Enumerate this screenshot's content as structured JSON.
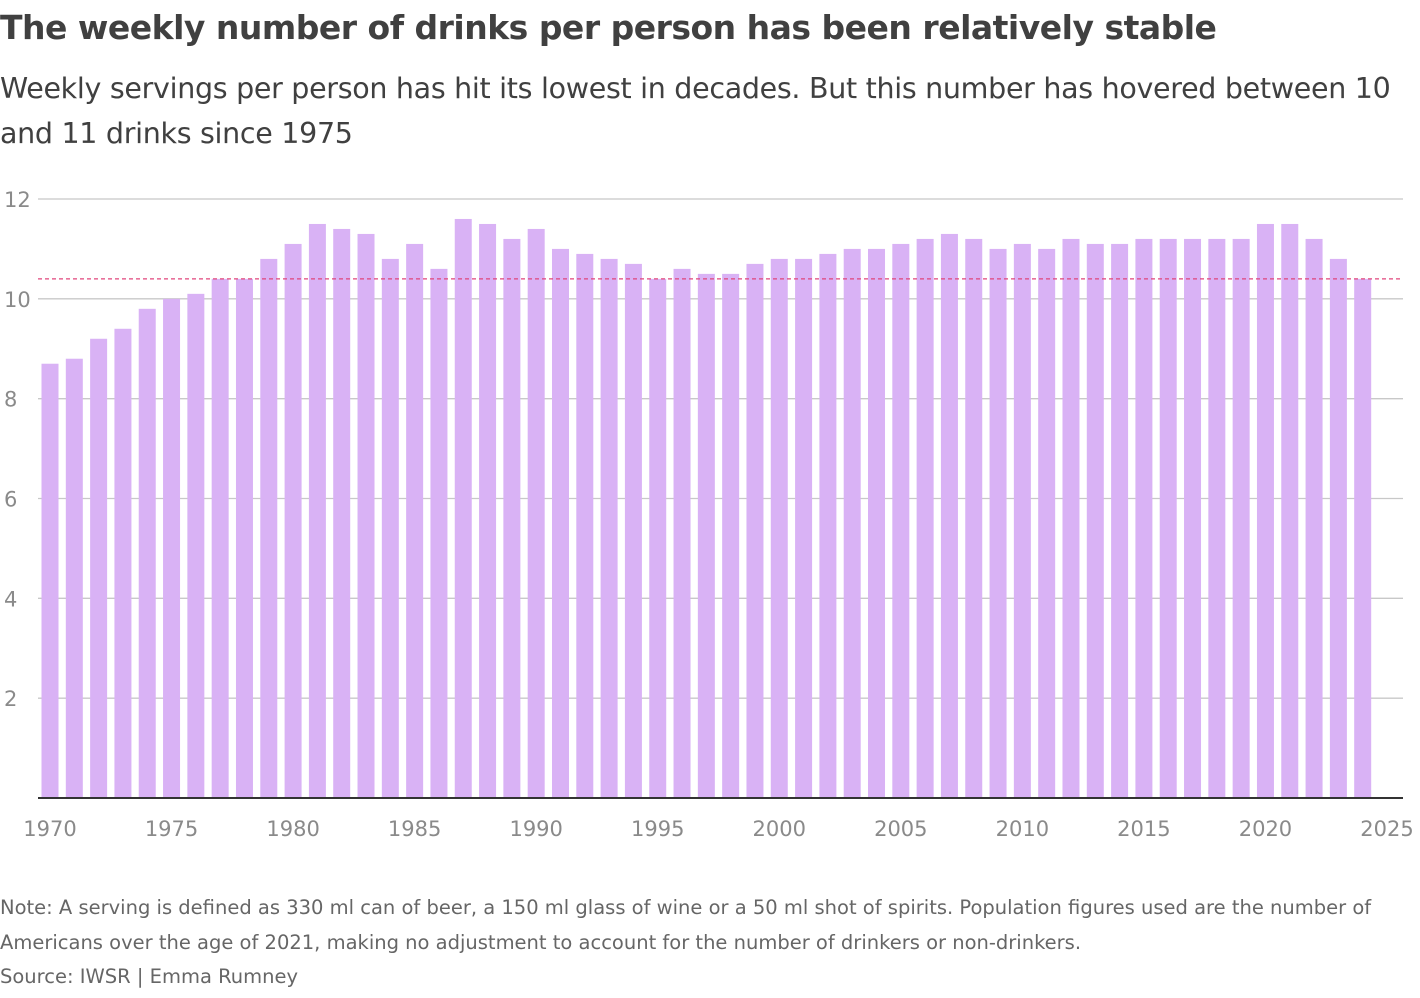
{
  "title": "The weekly number of drinks per person has been relatively stable",
  "subtitle": "Weekly servings per person has hit its lowest in decades. But this number has hovered between 10 and 11 drinks since 1975",
  "note": "Note: A serving is defined as 330 ml can of beer, a 150 ml glass of wine or a 50 ml shot of spirits. Population figures used are the number of Americans over the age of 2021, making no adjustment to account for the number of drinkers or non-drinkers.",
  "source": "Source: IWSR | Emma Rumney",
  "colors": {
    "bar": "#d9b2f5",
    "reference_line": "#e0457b",
    "grid": "#c8c8c8",
    "axis": "#333333"
  },
  "chart_data": {
    "type": "bar",
    "title": "The weekly number of drinks per person has been relatively stable",
    "xlabel": "",
    "ylabel": "",
    "ylim": [
      0,
      12
    ],
    "xlim": [
      1970,
      2025
    ],
    "yticks": [
      2,
      4,
      6,
      8,
      10,
      12
    ],
    "xticks": [
      1970,
      1975,
      1980,
      1985,
      1990,
      1995,
      2000,
      2005,
      2010,
      2015,
      2020,
      2025
    ],
    "grid": true,
    "reference_line": {
      "value": 10.4,
      "style": "dashed"
    },
    "x": [
      1970,
      1971,
      1972,
      1973,
      1974,
      1975,
      1976,
      1977,
      1978,
      1979,
      1980,
      1981,
      1982,
      1983,
      1984,
      1985,
      1986,
      1987,
      1988,
      1989,
      1990,
      1991,
      1992,
      1993,
      1994,
      1995,
      1996,
      1997,
      1998,
      1999,
      2000,
      2001,
      2002,
      2003,
      2004,
      2005,
      2006,
      2007,
      2008,
      2009,
      2010,
      2011,
      2012,
      2013,
      2014,
      2015,
      2016,
      2017,
      2018,
      2019,
      2020,
      2021,
      2022,
      2023,
      2024
    ],
    "values": [
      8.7,
      8.8,
      9.2,
      9.4,
      9.8,
      10.0,
      10.1,
      10.4,
      10.4,
      10.8,
      11.1,
      11.5,
      11.4,
      11.3,
      10.8,
      11.1,
      10.6,
      11.6,
      11.5,
      11.2,
      11.4,
      11.0,
      10.9,
      10.8,
      10.7,
      10.4,
      10.6,
      10.5,
      10.5,
      10.7,
      10.8,
      10.8,
      10.9,
      11.0,
      11.0,
      11.1,
      11.2,
      11.3,
      11.2,
      11.0,
      11.1,
      11.0,
      11.2,
      11.1,
      11.1,
      11.2,
      11.2,
      11.2,
      11.2,
      11.2,
      11.5,
      11.5,
      11.2,
      10.8,
      10.4
    ]
  }
}
